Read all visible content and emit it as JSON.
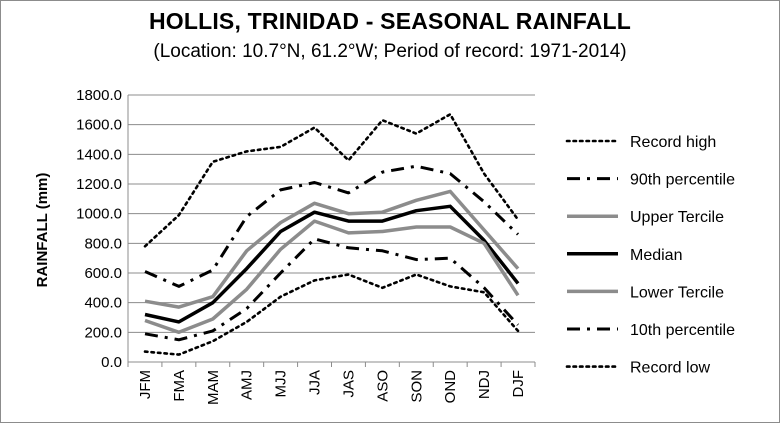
{
  "chart_data": {
    "type": "line",
    "title": "HOLLIS, TRINIDAD - SEASONAL RAINFALL",
    "subtitle": "(Location: 10.7°N, 61.2°W; Period of record: 1971-2014)",
    "ylabel": "RAINFALL (mm)",
    "xlabel": "",
    "ylim": [
      0,
      1800
    ],
    "ytick_labels": [
      "0.0",
      "200.0",
      "400.0",
      "600.0",
      "800.0",
      "1000.0",
      "1200.0",
      "1400.0",
      "1600.0",
      "1800.0"
    ],
    "ytick_values": [
      0,
      200,
      400,
      600,
      800,
      1000,
      1200,
      1400,
      1600,
      1800
    ],
    "categories": [
      "JFM",
      "FMA",
      "MAM",
      "AMJ",
      "MJJ",
      "JJA",
      "JAS",
      "ASO",
      "SON",
      "OND",
      "NDJ",
      "DJF"
    ],
    "grid": true,
    "legend_position": "right",
    "series": [
      {
        "name": "Record high",
        "style": "dotted",
        "color": "#000000",
        "values": [
          780,
          990,
          1350,
          1420,
          1450,
          1580,
          1360,
          1630,
          1540,
          1670,
          1270,
          960
        ]
      },
      {
        "name": "90th percentile",
        "style": "dashdot",
        "color": "#000000",
        "values": [
          610,
          510,
          620,
          980,
          1160,
          1210,
          1140,
          1280,
          1320,
          1270,
          1080,
          860
        ]
      },
      {
        "name": "Upper Tercile",
        "style": "solid-gray",
        "color": "#8c8c8c",
        "values": [
          410,
          370,
          440,
          750,
          940,
          1070,
          1000,
          1010,
          1090,
          1150,
          890,
          630
        ]
      },
      {
        "name": "Median",
        "style": "solid-black",
        "color": "#000000",
        "values": [
          320,
          270,
          400,
          630,
          880,
          1010,
          950,
          950,
          1020,
          1050,
          820,
          530
        ]
      },
      {
        "name": "Lower Tercile",
        "style": "solid-gray",
        "color": "#8c8c8c",
        "values": [
          280,
          200,
          290,
          490,
          760,
          950,
          870,
          880,
          910,
          910,
          800,
          450
        ]
      },
      {
        "name": "10th percentile",
        "style": "dashdot",
        "color": "#000000",
        "values": [
          190,
          150,
          210,
          360,
          600,
          830,
          770,
          750,
          690,
          700,
          500,
          250
        ]
      },
      {
        "name": "Record low",
        "style": "dotted",
        "color": "#000000",
        "values": [
          70,
          50,
          140,
          270,
          440,
          550,
          590,
          500,
          590,
          510,
          470,
          210
        ]
      }
    ]
  }
}
